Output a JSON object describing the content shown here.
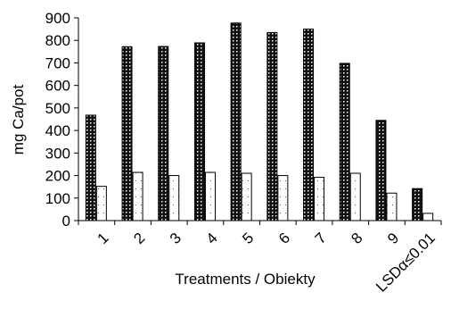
{
  "chart_data": {
    "type": "bar",
    "title": "",
    "xlabel": "Treatments / Obiekty",
    "ylabel": "mg Ca/pot",
    "ylim": [
      0,
      900
    ],
    "yticks": [
      0,
      100,
      200,
      300,
      400,
      500,
      600,
      700,
      800,
      900
    ],
    "grid": false,
    "legend": "none",
    "categories": [
      "1",
      "2",
      "3",
      "4",
      "5",
      "6",
      "7",
      "8",
      "9",
      "LSDα≤0.01"
    ],
    "series": [
      {
        "pattern": "dark-checkered",
        "values": [
          468,
          772,
          773,
          789,
          877,
          835,
          850,
          698,
          445,
          142
        ]
      },
      {
        "pattern": "white-dotted",
        "values": [
          152,
          214,
          200,
          214,
          210,
          200,
          192,
          210,
          122,
          32
        ]
      }
    ]
  },
  "colors": {
    "axis": "#000000",
    "bar_dark": "#111111",
    "bar_light": "#ffffff",
    "background": "#ffffff"
  }
}
